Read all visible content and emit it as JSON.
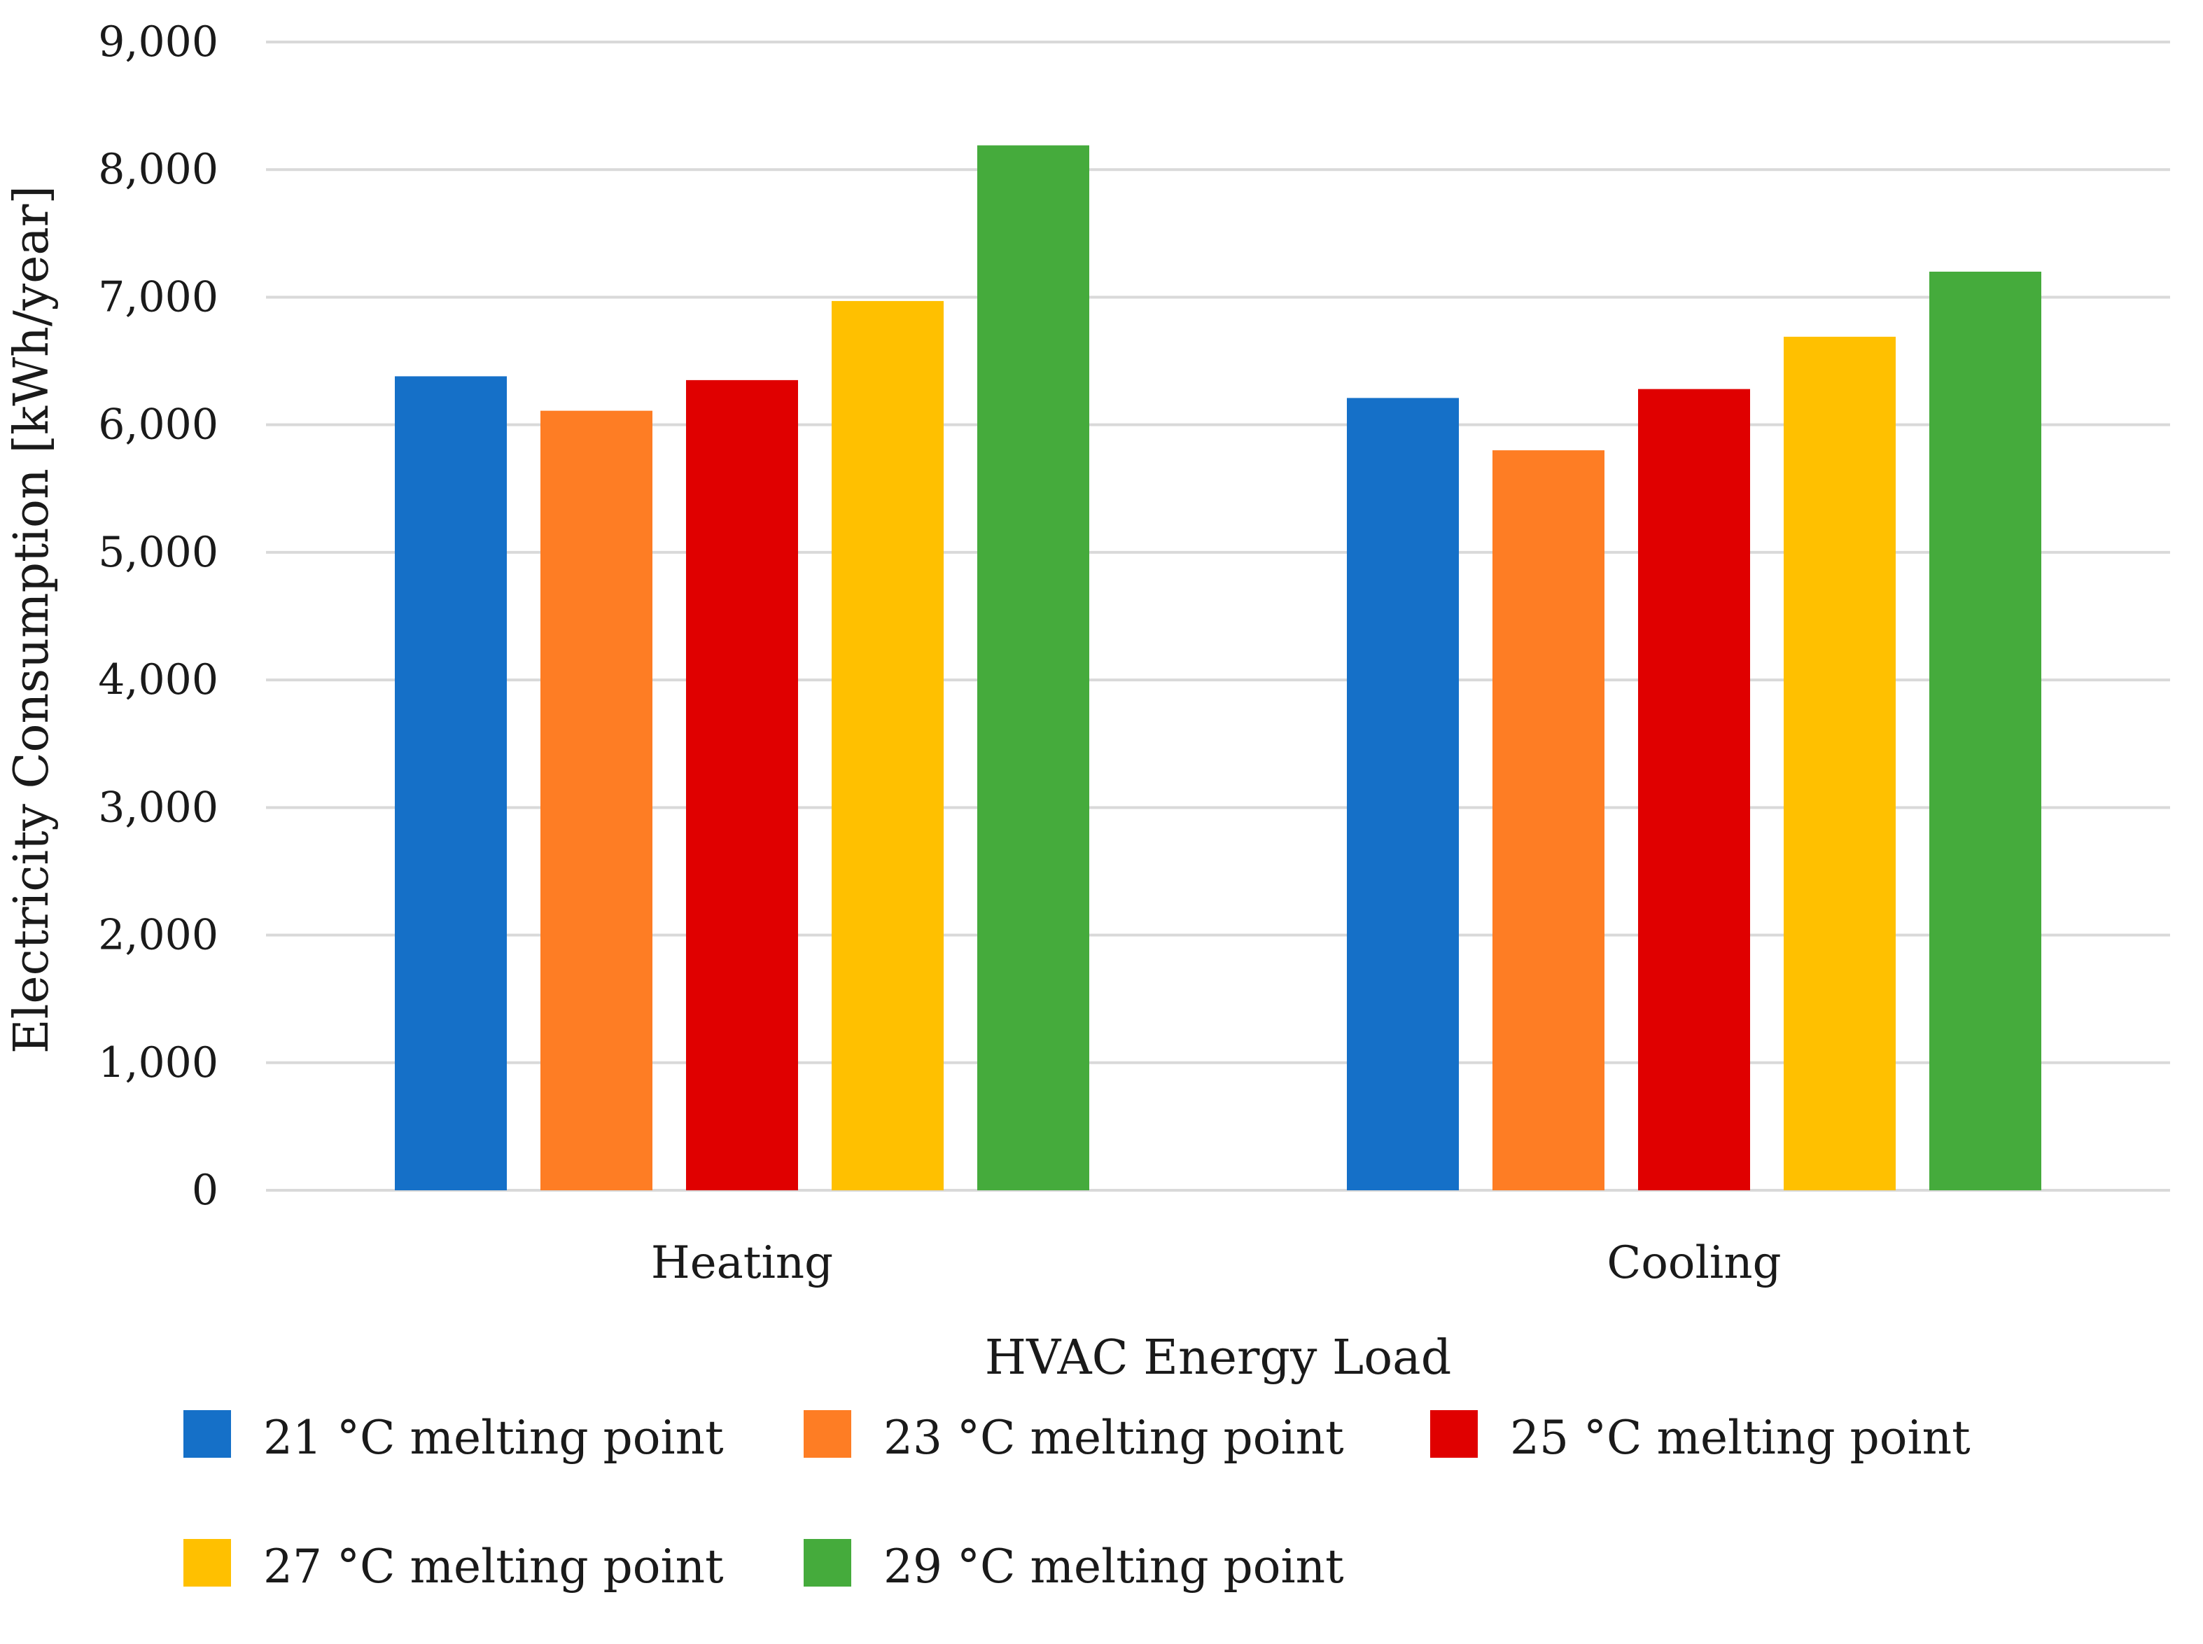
{
  "chart_data": {
    "type": "bar",
    "categories": [
      "Heating",
      "Cooling"
    ],
    "series": [
      {
        "name": "21 °C melting point",
        "color": "#1570c8",
        "values": [
          6380,
          6210
        ]
      },
      {
        "name": "23 °C melting point",
        "color": "#fe7d24",
        "values": [
          6110,
          5800
        ]
      },
      {
        "name": "25 °C melting point",
        "color": "#e00000",
        "values": [
          6350,
          6280
        ]
      },
      {
        "name": "27 °C melting point",
        "color": "#ffc000",
        "values": [
          6970,
          6690
        ]
      },
      {
        "name": "29 °C melting point",
        "color": "#45ab3c",
        "values": [
          8190,
          7200
        ]
      }
    ],
    "xlabel": "HVAC Energy Load",
    "ylabel": "Electricity Consumption [kWh/year]",
    "ylim": [
      0,
      9000
    ],
    "yticks": [
      "0",
      "1,000",
      "2,000",
      "3,000",
      "4,000",
      "5,000",
      "6,000",
      "7,000",
      "8,000",
      "9,000"
    ],
    "grid": true,
    "legend_position": "bottom"
  }
}
